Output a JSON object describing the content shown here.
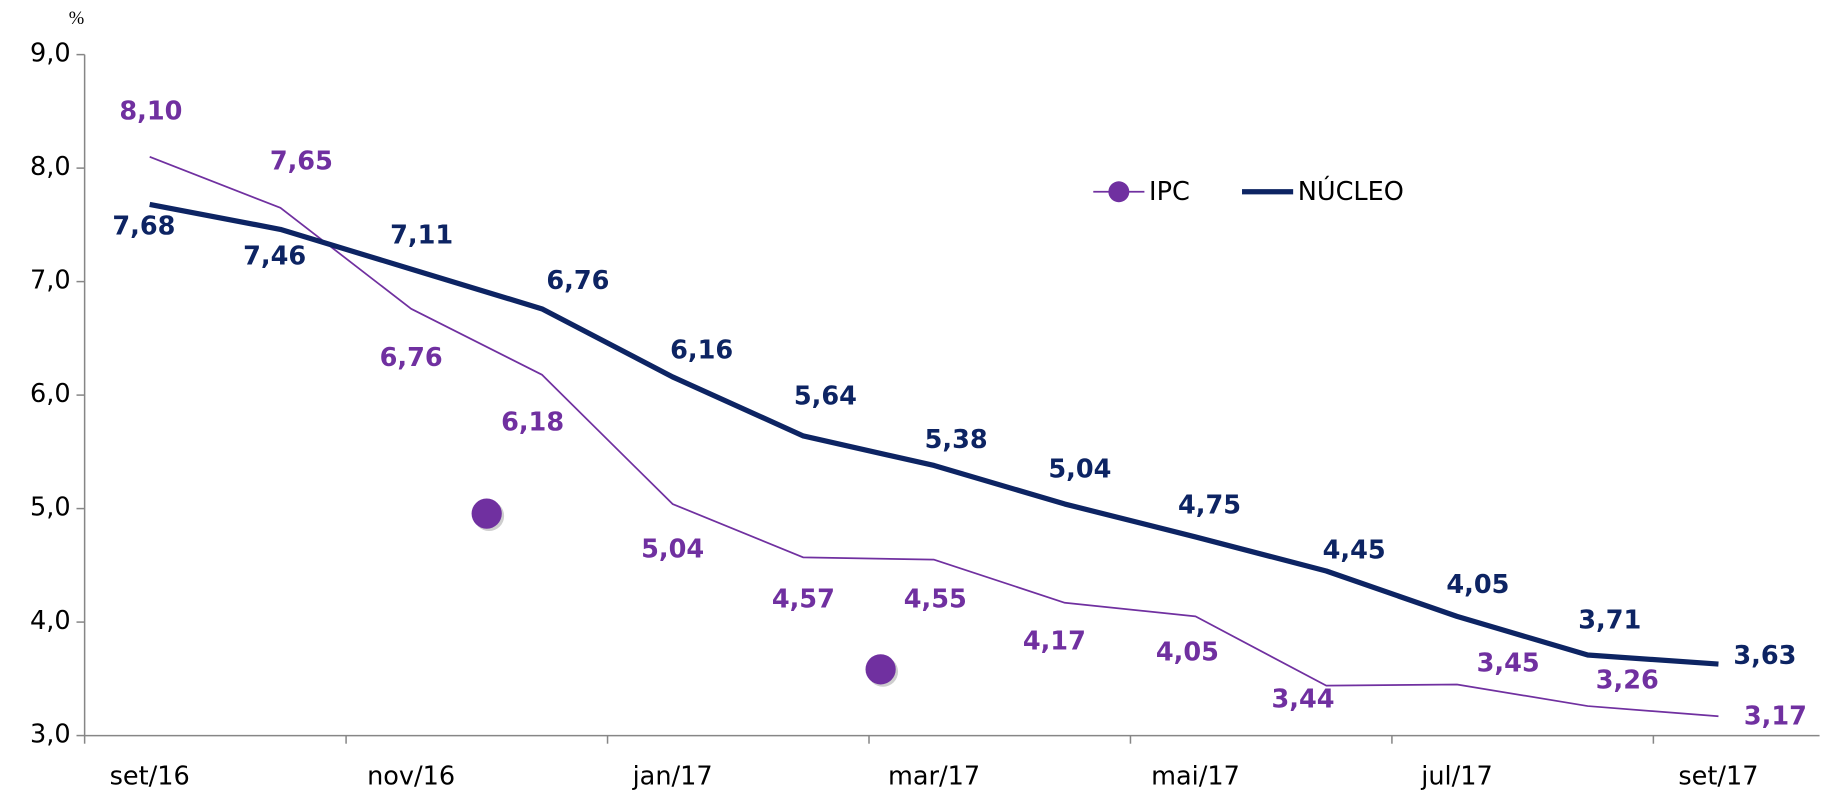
{
  "chart_data": {
    "type": "line",
    "y_label": "%",
    "categories": [
      "set/16",
      null,
      "nov/16",
      null,
      "jan/17",
      null,
      "mar/17",
      null,
      "mai/17",
      null,
      "jul/17",
      null,
      "set/17"
    ],
    "series": [
      {
        "name": "IPC",
        "color": "#7030a0",
        "values": [
          8.1,
          7.65,
          6.76,
          6.18,
          5.04,
          4.57,
          4.55,
          4.17,
          4.05,
          3.44,
          3.45,
          3.26,
          3.17
        ],
        "value_labels": [
          "8,10",
          "7,65",
          "6,76",
          "6,18",
          "5,04",
          "4,57",
          "4,55",
          "4,17",
          "4,05",
          "3,44",
          "3,45",
          "3,26",
          "3,17"
        ]
      },
      {
        "name": "NÚCLEO",
        "color": "#0d2463",
        "values": [
          7.68,
          7.46,
          7.11,
          6.76,
          6.16,
          5.64,
          5.38,
          5.04,
          4.75,
          4.45,
          4.05,
          3.71,
          3.63
        ],
        "value_labels": [
          "7,68",
          "7,46",
          "7,11",
          "6,76",
          "6,16",
          "5,64",
          "5,38",
          "5,04",
          "4,75",
          "4,45",
          "4,05",
          "3,71",
          "3,63"
        ]
      }
    ],
    "ylim": [
      3,
      9
    ],
    "yticks": [
      {
        "value": 3,
        "label": "3,0"
      },
      {
        "value": 4,
        "label": "4,0"
      },
      {
        "value": 5,
        "label": "5,0"
      },
      {
        "value": 6,
        "label": "6,0"
      },
      {
        "value": 7,
        "label": "7,0"
      },
      {
        "value": 8,
        "label": "8,0"
      },
      {
        "value": 9,
        "label": "9,0"
      }
    ]
  }
}
